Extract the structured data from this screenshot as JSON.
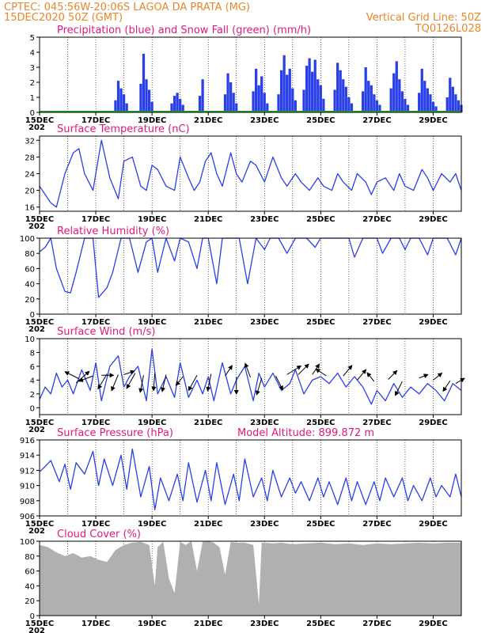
{
  "header": {
    "line1": "CPTEC:   045:56W-20:06S   LAGOA DA PRATA (MG)",
    "line2": "15DEC2020 50Z (GMT)",
    "grid_note": "Vertical Grid Line: 50Z",
    "code": "TQ0126L028"
  },
  "x_axis": {
    "start_day": 15,
    "end_day": 30,
    "tick_labels": [
      "15DEC",
      "17DEC",
      "19DEC",
      "21DEC",
      "23DEC",
      "25DEC",
      "27DEC",
      "29DEC"
    ],
    "tick_days": [
      15,
      17,
      19,
      21,
      23,
      25,
      27,
      29
    ],
    "year_fragment": "202"
  },
  "colors": {
    "header": "#e8862a",
    "title": "#e0197d",
    "precip": "#2a3fe8",
    "snow": "#1faa2a",
    "line": "#2a3fe8",
    "arrow": "#000000",
    "cloud": "#b0b0b0"
  },
  "chart_data": [
    {
      "id": "precip",
      "type": "bar",
      "title": "Precipitation (blue) and Snow Fall (green) (mm/h)",
      "ylim": [
        0,
        5
      ],
      "yticks": [
        0,
        1,
        2,
        3,
        4,
        5
      ],
      "series": [
        {
          "name": "Precipitation",
          "x": [
            17.7,
            17.8,
            17.9,
            18.0,
            18.1,
            18.6,
            18.7,
            18.8,
            18.9,
            19.0,
            19.7,
            19.8,
            19.9,
            20.0,
            20.1,
            20.7,
            20.8,
            21.6,
            21.7,
            21.8,
            21.9,
            22.0,
            22.6,
            22.7,
            22.8,
            22.9,
            23.0,
            23.1,
            23.5,
            23.6,
            23.7,
            23.8,
            23.9,
            24.0,
            24.1,
            24.4,
            24.5,
            24.6,
            24.7,
            24.8,
            24.9,
            25.0,
            25.1,
            25.5,
            25.6,
            25.7,
            25.8,
            25.9,
            26.0,
            26.1,
            26.5,
            26.6,
            26.7,
            26.8,
            26.9,
            27.0,
            27.1,
            27.5,
            27.6,
            27.7,
            27.8,
            27.9,
            28.0,
            28.1,
            28.5,
            28.6,
            28.7,
            28.8,
            28.9,
            29.0,
            29.1,
            29.5,
            29.6,
            29.7,
            29.8,
            29.9,
            30.0
          ],
          "values": [
            0.8,
            2.1,
            1.6,
            1.2,
            0.6,
            1.9,
            3.9,
            2.2,
            1.5,
            0.7,
            0.6,
            1.1,
            1.3,
            0.9,
            0.5,
            1.1,
            2.2,
            1.2,
            2.6,
            2.0,
            1.3,
            0.6,
            1.4,
            2.9,
            1.8,
            2.4,
            1.3,
            0.6,
            1.2,
            2.8,
            3.8,
            2.5,
            2.9,
            1.6,
            0.8,
            1.5,
            3.1,
            3.6,
            2.7,
            3.5,
            2.2,
            1.8,
            0.9,
            1.5,
            3.3,
            2.8,
            2.2,
            1.7,
            1.0,
            0.6,
            1.4,
            3.0,
            2.1,
            1.8,
            1.2,
            0.8,
            0.5,
            1.6,
            2.6,
            3.4,
            2.2,
            1.4,
            0.9,
            0.5,
            1.3,
            2.9,
            2.1,
            1.6,
            1.2,
            0.7,
            0.4,
            1.0,
            2.3,
            1.7,
            1.2,
            0.8,
            0.5
          ]
        },
        {
          "name": "Snow Fall",
          "x": [
            15.0,
            30.0
          ],
          "values": [
            0,
            0
          ]
        }
      ]
    },
    {
      "id": "temperature",
      "type": "line",
      "title": "Surface Temperature (nC)",
      "ylim": [
        15,
        33
      ],
      "yticks": [
        16,
        20,
        24,
        28,
        32
      ],
      "series": [
        {
          "name": "Temperature",
          "x": [
            15.0,
            15.2,
            15.4,
            15.6,
            15.9,
            16.2,
            16.4,
            16.6,
            16.9,
            17.2,
            17.5,
            17.8,
            18.0,
            18.3,
            18.6,
            18.8,
            19.0,
            19.2,
            19.5,
            19.8,
            20.0,
            20.3,
            20.5,
            20.7,
            20.9,
            21.1,
            21.3,
            21.5,
            21.8,
            22.0,
            22.2,
            22.5,
            22.7,
            23.0,
            23.3,
            23.6,
            23.8,
            24.1,
            24.3,
            24.6,
            24.9,
            25.1,
            25.4,
            25.6,
            25.8,
            26.1,
            26.3,
            26.6,
            26.8,
            27.0,
            27.3,
            27.6,
            27.8,
            28.0,
            28.3,
            28.6,
            28.8,
            29.0,
            29.3,
            29.6,
            29.8,
            30.0
          ],
          "values": [
            21,
            19,
            17,
            16,
            24,
            29,
            30,
            24,
            20,
            32,
            23,
            18,
            27,
            28,
            21,
            20,
            26,
            25,
            21,
            20,
            28,
            23,
            20,
            22,
            27,
            29,
            24,
            21,
            29,
            24,
            22,
            27,
            26,
            22,
            28,
            23,
            21,
            24,
            22,
            20,
            23,
            21,
            20,
            24,
            22,
            20,
            24,
            22,
            19,
            22,
            23,
            20,
            24,
            21,
            20,
            25,
            23,
            20,
            24,
            22,
            24,
            20
          ]
        }
      ]
    },
    {
      "id": "humidity",
      "type": "line",
      "title": "Relative Humidity (%)",
      "ylim": [
        0,
        100
      ],
      "yticks": [
        0,
        20,
        40,
        60,
        80,
        100
      ],
      "series": [
        {
          "name": "Relative Humidity",
          "x": [
            15.0,
            15.2,
            15.4,
            15.6,
            15.9,
            16.1,
            16.3,
            16.6,
            16.9,
            17.1,
            17.4,
            17.6,
            17.9,
            18.2,
            18.5,
            18.8,
            19.0,
            19.2,
            19.5,
            19.8,
            20.0,
            20.3,
            20.6,
            20.8,
            21.0,
            21.3,
            21.5,
            21.8,
            22.1,
            22.4,
            22.7,
            23.0,
            23.2,
            23.5,
            23.8,
            24.1,
            24.3,
            24.5,
            24.8,
            25.0,
            25.2,
            25.5,
            25.8,
            26.0,
            26.2,
            26.5,
            26.8,
            27.0,
            27.2,
            27.5,
            27.8,
            28.0,
            28.2,
            28.5,
            28.8,
            29.0,
            29.2,
            29.5,
            29.8,
            30.0
          ],
          "values": [
            82,
            88,
            100,
            60,
            30,
            28,
            55,
            100,
            100,
            22,
            35,
            55,
            100,
            100,
            55,
            95,
            100,
            55,
            100,
            70,
            100,
            95,
            60,
            100,
            100,
            40,
            100,
            100,
            100,
            40,
            100,
            85,
            100,
            100,
            80,
            100,
            100,
            100,
            88,
            100,
            100,
            100,
            100,
            100,
            75,
            100,
            100,
            100,
            80,
            100,
            100,
            85,
            100,
            100,
            78,
            100,
            100,
            100,
            78,
            100
          ]
        }
      ]
    },
    {
      "id": "wind",
      "type": "line",
      "title": "Surface Wind (m/s)",
      "ylim": [
        -1,
        10
      ],
      "yticks": [
        0,
        2,
        4,
        6,
        8,
        10
      ],
      "series": [
        {
          "name": "Wind Speed",
          "x": [
            15.0,
            15.2,
            15.4,
            15.6,
            15.8,
            16.0,
            16.2,
            16.5,
            16.8,
            17.0,
            17.2,
            17.5,
            17.8,
            18.0,
            18.2,
            18.5,
            18.8,
            19.0,
            19.2,
            19.5,
            19.8,
            20.0,
            20.3,
            20.6,
            20.8,
            21.0,
            21.2,
            21.5,
            21.8,
            22.0,
            22.3,
            22.6,
            22.8,
            23.0,
            23.3,
            23.6,
            23.9,
            24.1,
            24.4,
            24.7,
            25.0,
            25.3,
            25.6,
            25.9,
            26.2,
            26.5,
            26.8,
            27.0,
            27.3,
            27.6,
            27.9,
            28.2,
            28.5,
            28.8,
            29.1,
            29.4,
            29.7,
            30.0
          ],
          "values": [
            1.2,
            3.0,
            2.0,
            5.0,
            3.0,
            4.0,
            2.0,
            5.5,
            2.5,
            6.5,
            1.0,
            6.0,
            7.5,
            3.0,
            4.5,
            6.0,
            1.0,
            8.5,
            2.0,
            4.5,
            1.5,
            6.5,
            1.5,
            4.0,
            2.0,
            4.5,
            1.0,
            6.5,
            2.0,
            4.0,
            6.0,
            1.0,
            5.0,
            3.0,
            5.0,
            2.5,
            3.5,
            5.5,
            2.0,
            4.0,
            4.5,
            3.5,
            5.0,
            3.0,
            4.5,
            3.0,
            0.5,
            2.5,
            1.0,
            3.5,
            1.5,
            3.0,
            2.0,
            3.5,
            2.5,
            1.0,
            3.5,
            2.5
          ]
        }
      ]
    },
    {
      "id": "pressure",
      "type": "line",
      "title": "Surface Pressure (hPa)",
      "annotation": "Model Altitude: 899.872 m",
      "ylim": [
        906,
        916
      ],
      "yticks": [
        906,
        908,
        910,
        912,
        914,
        916
      ],
      "series": [
        {
          "name": "Surface Pressure",
          "x": [
            15.0,
            15.2,
            15.4,
            15.7,
            15.9,
            16.1,
            16.3,
            16.6,
            16.9,
            17.1,
            17.3,
            17.6,
            17.9,
            18.1,
            18.3,
            18.6,
            18.9,
            19.1,
            19.3,
            19.6,
            19.9,
            20.1,
            20.3,
            20.6,
            20.9,
            21.1,
            21.3,
            21.6,
            21.9,
            22.1,
            22.3,
            22.6,
            22.9,
            23.1,
            23.3,
            23.6,
            23.9,
            24.1,
            24.3,
            24.6,
            24.9,
            25.1,
            25.3,
            25.6,
            25.9,
            26.1,
            26.3,
            26.6,
            26.9,
            27.1,
            27.3,
            27.6,
            27.9,
            28.1,
            28.3,
            28.6,
            28.9,
            29.1,
            29.3,
            29.6,
            29.8,
            30.0
          ],
          "values": [
            911.8,
            912.5,
            913.3,
            910.5,
            912.8,
            909.5,
            913.0,
            911.5,
            914.5,
            910.0,
            913.5,
            910.0,
            914.0,
            909.5,
            914.8,
            908.5,
            912.5,
            906.8,
            911.0,
            908.0,
            911.5,
            908.0,
            913.0,
            907.8,
            912.0,
            908.0,
            913.0,
            907.5,
            911.5,
            908.0,
            913.5,
            908.5,
            911.0,
            908.0,
            912.0,
            908.5,
            911.0,
            909.0,
            910.5,
            908.0,
            911.0,
            908.5,
            910.5,
            907.5,
            911.0,
            908.0,
            910.5,
            907.5,
            910.5,
            908.0,
            911.0,
            908.5,
            911.0,
            908.0,
            910.0,
            908.0,
            911.0,
            908.5,
            910.0,
            908.5,
            911.5,
            908.5
          ]
        }
      ]
    },
    {
      "id": "cloud",
      "type": "area",
      "title": "Cloud Cover (%)",
      "ylim": [
        0,
        100
      ],
      "yticks": [
        0,
        20,
        40,
        60,
        80,
        100
      ],
      "series": [
        {
          "name": "Cloud Cover",
          "x": [
            15.0,
            15.3,
            15.6,
            15.9,
            16.2,
            16.5,
            16.8,
            17.1,
            17.4,
            17.7,
            18.0,
            18.3,
            18.6,
            18.9,
            19.1,
            19.2,
            19.4,
            19.6,
            19.8,
            20.0,
            20.2,
            20.4,
            20.6,
            20.8,
            21.0,
            21.2,
            21.4,
            21.6,
            21.8,
            22.0,
            22.3,
            22.6,
            22.8,
            22.9,
            23.0,
            23.3,
            23.6,
            24.0,
            24.5,
            25.0,
            25.5,
            26.0,
            26.5,
            27.0,
            27.5,
            28.0,
            28.5,
            29.0,
            29.5,
            30.0
          ],
          "values": [
            95,
            92,
            85,
            80,
            84,
            78,
            80,
            75,
            72,
            88,
            95,
            98,
            99,
            95,
            40,
            92,
            99,
            50,
            30,
            99,
            95,
            100,
            60,
            99,
            100,
            98,
            92,
            55,
            99,
            98,
            98,
            95,
            15,
            98,
            98,
            97,
            98,
            96,
            97,
            98,
            96,
            97,
            95,
            97,
            96,
            97,
            98,
            97,
            98,
            98
          ]
        }
      ]
    }
  ],
  "wind_arrows": [
    {
      "day": 16.3,
      "speed": 3.6,
      "u": 0.8,
      "v": 0.7
    },
    {
      "day": 16.4,
      "speed": 4.2,
      "u": -0.8,
      "v": 0.4
    },
    {
      "day": 16.9,
      "speed": 4.6,
      "u": -0.8,
      "v": -0.3
    },
    {
      "day": 17.2,
      "speed": 4.7,
      "u": 0.7,
      "v": 0.0
    },
    {
      "day": 17.4,
      "speed": 4.9,
      "u": -0.6,
      "v": -1.0
    },
    {
      "day": 17.8,
      "speed": 4.8,
      "u": -0.5,
      "v": -1.2
    },
    {
      "day": 18.0,
      "speed": 4.8,
      "u": 0.6,
      "v": 0.2
    },
    {
      "day": 18.4,
      "speed": 5.0,
      "u": -0.5,
      "v": -0.9
    },
    {
      "day": 18.7,
      "speed": 4.7,
      "u": -0.3,
      "v": -1.5
    },
    {
      "day": 19.1,
      "speed": 5.0,
      "u": -0.1,
      "v": -1.3
    },
    {
      "day": 19.5,
      "speed": 4.8,
      "u": -0.3,
      "v": -1.3
    },
    {
      "day": 20.1,
      "speed": 4.5,
      "u": -0.4,
      "v": -0.5
    },
    {
      "day": 20.6,
      "speed": 4.7,
      "u": -0.5,
      "v": -0.9
    },
    {
      "day": 21.1,
      "speed": 4.9,
      "u": -0.2,
      "v": -1.0
    },
    {
      "day": 21.6,
      "speed": 4.6,
      "u": 0.4,
      "v": 0.6
    },
    {
      "day": 22.0,
      "speed": 4.5,
      "u": 0.0,
      "v": -1.1
    },
    {
      "day": 22.5,
      "speed": 4.4,
      "u": -0.3,
      "v": 0.8
    },
    {
      "day": 22.9,
      "speed": 4.3,
      "u": -0.3,
      "v": -1.0
    },
    {
      "day": 23.4,
      "speed": 4.6,
      "u": 0.4,
      "v": -0.8
    },
    {
      "day": 23.8,
      "speed": 4.8,
      "u": 0.8,
      "v": 0.5
    },
    {
      "day": 24.2,
      "speed": 4.8,
      "u": 0.6,
      "v": 0.6
    },
    {
      "day": 24.7,
      "speed": 4.8,
      "u": 0.4,
      "v": 0.6
    },
    {
      "day": 25.2,
      "speed": 4.6,
      "u": -0.6,
      "v": 0.4
    },
    {
      "day": 25.8,
      "speed": 4.6,
      "u": 0.5,
      "v": 0.6
    },
    {
      "day": 26.3,
      "speed": 4.0,
      "u": 0.5,
      "v": 0.6
    },
    {
      "day": 26.9,
      "speed": 3.8,
      "u": -0.4,
      "v": 0.5
    },
    {
      "day": 27.4,
      "speed": 4.1,
      "u": 0.5,
      "v": 0.5
    },
    {
      "day": 27.9,
      "speed": 3.8,
      "u": -0.4,
      "v": -0.8
    },
    {
      "day": 28.5,
      "speed": 4.3,
      "u": 0.5,
      "v": 0.2
    },
    {
      "day": 29.0,
      "speed": 4.0,
      "u": 0.5,
      "v": 0.4
    },
    {
      "day": 29.6,
      "speed": 3.9,
      "u": -0.4,
      "v": -0.6
    },
    {
      "day": 29.8,
      "speed": 3.5,
      "u": 0.5,
      "v": 0.3
    }
  ]
}
